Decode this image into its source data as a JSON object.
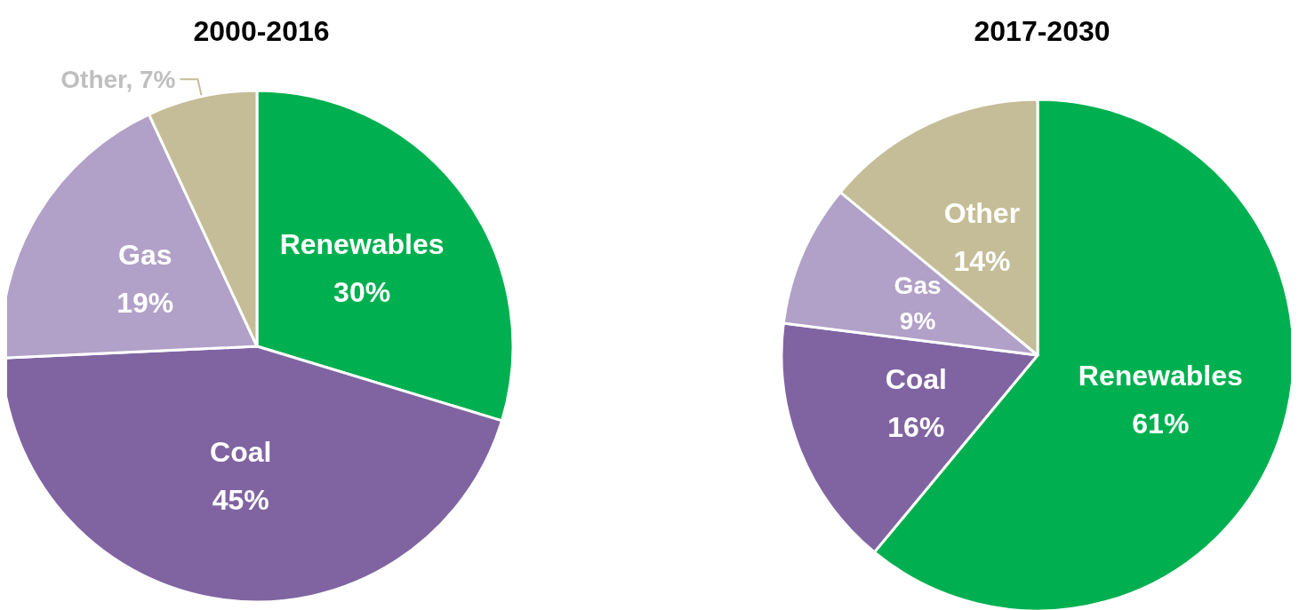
{
  "chart_data": [
    {
      "type": "pie",
      "title": "2000-2016",
      "categories": [
        "Renewables",
        "Coal",
        "Gas",
        "Other"
      ],
      "values": [
        30,
        45,
        19,
        7
      ],
      "colors": [
        "#00b050",
        "#8064a2",
        "#b1a0c7",
        "#c4bd97"
      ],
      "value_labels": [
        "30%",
        "45%",
        "19%",
        "7%"
      ]
    },
    {
      "type": "pie",
      "title": "2017-2030",
      "categories": [
        "Renewables",
        "Coal",
        "Gas",
        "Other"
      ],
      "values": [
        61,
        16,
        9,
        14
      ],
      "colors": [
        "#00b050",
        "#8064a2",
        "#b1a0c7",
        "#c4bd97"
      ],
      "value_labels": [
        "61%",
        "16%",
        "9%",
        "14%"
      ]
    }
  ]
}
